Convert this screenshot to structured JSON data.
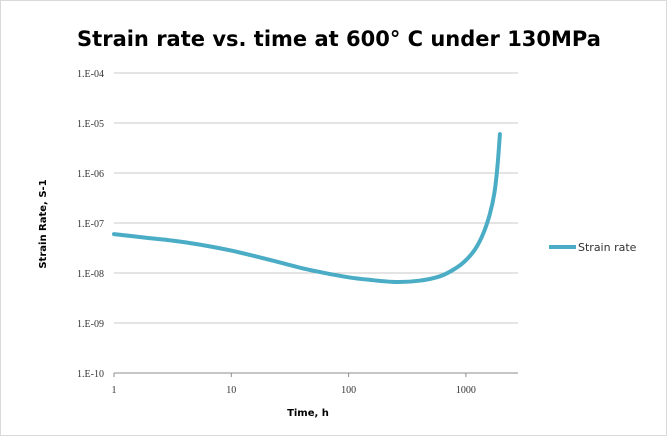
{
  "chart_data": {
    "type": "line",
    "title": "Strain rate vs. time at 600° C  under 130MPa",
    "xlabel": "Time, h",
    "ylabel": "Strain Rate, S-1",
    "x_scale": "log",
    "y_scale": "log",
    "xlim": [
      1,
      2200
    ],
    "ylim": [
      1e-10,
      0.0001
    ],
    "grid": "horizontal",
    "legend_position": "right",
    "x_ticks": [
      {
        "value": 1,
        "label": "1"
      },
      {
        "value": 10,
        "label": "10"
      },
      {
        "value": 100,
        "label": "100"
      },
      {
        "value": 1000,
        "label": "1000"
      }
    ],
    "y_ticks": [
      {
        "value": 0.0001,
        "label": "1.E-04"
      },
      {
        "value": 1e-05,
        "label": "1.E-05"
      },
      {
        "value": 1e-06,
        "label": "1.E-06"
      },
      {
        "value": 1e-07,
        "label": "1.E-07"
      },
      {
        "value": 1e-08,
        "label": "1.E-08"
      },
      {
        "value": 1e-09,
        "label": "1.E-09"
      },
      {
        "value": 1e-10,
        "label": "1.E-10"
      }
    ],
    "series": [
      {
        "name": "Strain rate",
        "color": "#4BACC6",
        "x": [
          1,
          2,
          3,
          5,
          10,
          20,
          40,
          70,
          100,
          150,
          250,
          400,
          600,
          800,
          1000,
          1200,
          1400,
          1600,
          1750,
          1850,
          1950
        ],
        "y": [
          6e-08,
          5e-08,
          4.5e-08,
          3.8e-08,
          2.8e-08,
          1.9e-08,
          1.25e-08,
          9.5e-09,
          8.2e-09,
          7.3e-09,
          6.6e-09,
          7e-09,
          8.6e-09,
          1.2e-08,
          1.8e-08,
          3e-08,
          6e-08,
          1.5e-07,
          4e-07,
          1.2e-06,
          6e-06
        ]
      }
    ]
  }
}
